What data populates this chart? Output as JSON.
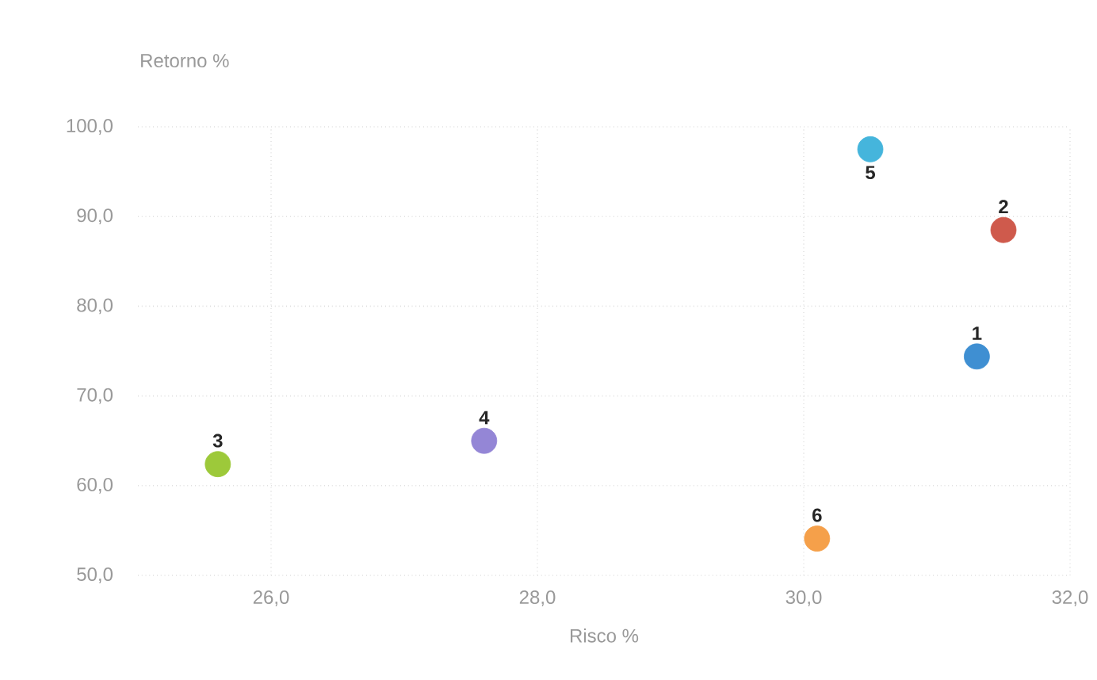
{
  "chart_data": {
    "type": "scatter",
    "xlabel": "Risco %",
    "ylabel": "Retorno %",
    "xlim": [
      25,
      32
    ],
    "ylim": [
      50,
      100
    ],
    "xticks": [
      {
        "value": 26,
        "label": "26,0"
      },
      {
        "value": 28,
        "label": "28,0"
      },
      {
        "value": 30,
        "label": "30,0"
      },
      {
        "value": 32,
        "label": "32,0"
      }
    ],
    "yticks": [
      {
        "value": 50,
        "label": "50,0"
      },
      {
        "value": 60,
        "label": "60,0"
      },
      {
        "value": 70,
        "label": "70,0"
      },
      {
        "value": 80,
        "label": "80,0"
      },
      {
        "value": 90,
        "label": "90,0"
      },
      {
        "value": 100,
        "label": "100,0"
      }
    ],
    "grid": true,
    "series": [
      {
        "name": "1",
        "color": "#3f8fd2",
        "x": [
          31.3
        ],
        "values": [
          74.4
        ]
      },
      {
        "name": "2",
        "color": "#cf5a4c",
        "x": [
          31.5
        ],
        "values": [
          88.5
        ]
      },
      {
        "name": "3",
        "color": "#9dc93a",
        "x": [
          25.6
        ],
        "values": [
          62.4
        ]
      },
      {
        "name": "4",
        "color": "#9486d6",
        "x": [
          27.6
        ],
        "values": [
          65.0
        ]
      },
      {
        "name": "5",
        "color": "#45b5dc",
        "x": [
          30.5
        ],
        "values": [
          97.5
        ]
      },
      {
        "name": "6",
        "color": "#f5a04a",
        "x": [
          30.1
        ],
        "values": [
          54.1
        ]
      }
    ]
  }
}
